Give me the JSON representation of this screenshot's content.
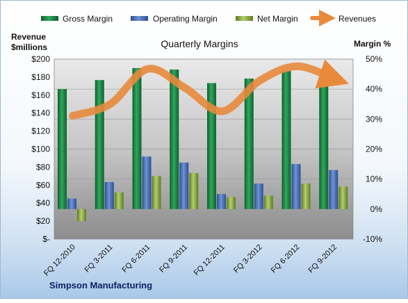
{
  "chart_data": {
    "type": "bar",
    "title": "Quarterly Margins",
    "ylabel_left": [
      "Revenue",
      "$millions"
    ],
    "ylabel_right": "Margin %",
    "footer": "Simpson Manufacturing",
    "categories": [
      "FQ 12-2010",
      "FQ 3-2011",
      "FQ 6-2011",
      "FQ 9-2011",
      "FQ 12-2011",
      "FQ 3-2012",
      "FQ 6-2012",
      "FQ 9-2012"
    ],
    "left_axis": {
      "ylim": [
        0,
        200
      ],
      "ticks": [
        "$-",
        "$20",
        "$40",
        "$60",
        "$80",
        "$100",
        "$120",
        "$140",
        "$160",
        "$180",
        "$200"
      ]
    },
    "right_axis": {
      "ylim": [
        -10,
        50
      ],
      "ticks": [
        "-10%",
        "0%",
        "10%",
        "20%",
        "30%",
        "40%",
        "50%"
      ]
    },
    "series": [
      {
        "name": "Gross Margin",
        "axis": "right",
        "color": "#1d8a47",
        "values": [
          40.0,
          43.0,
          47.0,
          46.5,
          42.0,
          43.5,
          46.0,
          43.5
        ]
      },
      {
        "name": "Operating Margin",
        "axis": "right",
        "color": "#4a72b8",
        "values": [
          3.5,
          9.0,
          17.5,
          15.5,
          5.0,
          8.5,
          15.0,
          13.0
        ]
      },
      {
        "name": "Net Margin",
        "axis": "right",
        "color": "#95b44c",
        "values": [
          -4.0,
          5.5,
          11.0,
          12.0,
          4.0,
          4.5,
          8.5,
          7.5
        ]
      },
      {
        "name": "Revenues",
        "axis": "left",
        "color": "#e88a3c",
        "values": [
          137,
          150,
          189,
          168,
          142,
          176,
          192,
          178
        ]
      }
    ],
    "legend_position": "top",
    "grid": true
  }
}
